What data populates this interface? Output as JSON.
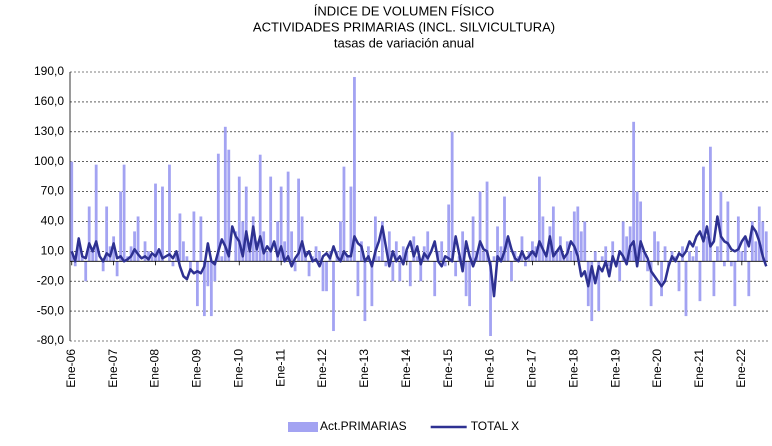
{
  "chart_data": {
    "type": "bar",
    "title": "ÍNDICE DE VOLUMEN FÍSICO",
    "subtitle": "ACTIVIDADES PRIMARIAS (INCL. SILVICULTURA)",
    "note": "tasas de variación anual",
    "categories": [
      "Ene-06",
      null,
      null,
      null,
      null,
      null,
      null,
      null,
      null,
      null,
      null,
      null,
      "Ene-07",
      null,
      null,
      null,
      null,
      null,
      null,
      null,
      null,
      null,
      null,
      null,
      "Ene-08",
      null,
      null,
      null,
      null,
      null,
      null,
      null,
      null,
      null,
      null,
      null,
      "Ene-09",
      null,
      null,
      null,
      null,
      null,
      null,
      null,
      null,
      null,
      null,
      null,
      "Ene-10",
      null,
      null,
      null,
      null,
      null,
      null,
      null,
      null,
      null,
      null,
      null,
      "Ene-11",
      null,
      null,
      null,
      null,
      null,
      null,
      null,
      null,
      null,
      null,
      null,
      "Ene-12",
      null,
      null,
      null,
      null,
      null,
      null,
      null,
      null,
      null,
      null,
      null,
      "Ene-13",
      null,
      null,
      null,
      null,
      null,
      null,
      null,
      null,
      null,
      null,
      null,
      "Ene-14",
      null,
      null,
      null,
      null,
      null,
      null,
      null,
      null,
      null,
      null,
      null,
      "Ene-15",
      null,
      null,
      null,
      null,
      null,
      null,
      null,
      null,
      null,
      null,
      null,
      "Ene-16",
      null,
      null,
      null,
      null,
      null,
      null,
      null,
      null,
      null,
      null,
      null,
      "Ene-17",
      null,
      null,
      null,
      null,
      null,
      null,
      null,
      null,
      null,
      null,
      null,
      "Ene-18",
      null,
      null,
      null,
      null,
      null,
      null,
      null,
      null,
      null,
      null,
      null,
      "Ene-19",
      null,
      null,
      null,
      null,
      null,
      null,
      null,
      null,
      null,
      null,
      null,
      "Ene-20",
      null,
      null,
      null,
      null,
      null,
      null,
      null,
      null,
      null,
      null,
      null,
      "Ene-21",
      null,
      null,
      null,
      null,
      null,
      null,
      null,
      null,
      null,
      null,
      null,
      "Ene-22",
      null,
      null,
      null,
      null,
      null,
      null,
      null
    ],
    "series": [
      {
        "name": "Act.PRIMARIAS",
        "type": "bar",
        "color": "#a3a3f2",
        "values": [
          100,
          -5,
          20,
          5,
          -20,
          55,
          10,
          97,
          0,
          -10,
          55,
          15,
          25,
          -15,
          70,
          97,
          5,
          15,
          30,
          45,
          0,
          20,
          10,
          5,
          78,
          10,
          75,
          0,
          97,
          -5,
          10,
          48,
          20,
          5,
          -10,
          50,
          -45,
          45,
          -55,
          -25,
          -55,
          -20,
          108,
          5,
          135,
          112,
          0,
          30,
          85,
          40,
          75,
          10,
          45,
          20,
          107,
          30,
          10,
          85,
          0,
          40,
          75,
          20,
          90,
          30,
          -10,
          83,
          45,
          10,
          -15,
          5,
          15,
          10,
          -30,
          -30,
          10,
          -70,
          10,
          40,
          95,
          5,
          75,
          185,
          -35,
          20,
          -60,
          15,
          -45,
          45,
          5,
          40,
          -5,
          30,
          -20,
          20,
          -20,
          15,
          10,
          -25,
          25,
          5,
          -20,
          15,
          30,
          0,
          -35,
          10,
          20,
          -5,
          57,
          130,
          -15,
          5,
          30,
          -35,
          -45,
          45,
          10,
          70,
          10,
          80,
          -75,
          5,
          35,
          15,
          65,
          20,
          -20,
          10,
          5,
          25,
          -5,
          10,
          20,
          15,
          85,
          45,
          5,
          35,
          55,
          10,
          25,
          5,
          20,
          10,
          50,
          55,
          30,
          40,
          -45,
          -60,
          10,
          -50,
          5,
          15,
          -5,
          20,
          0,
          -20,
          40,
          25,
          35,
          140,
          70,
          60,
          10,
          -10,
          -45,
          30,
          20,
          -35,
          15,
          -5,
          10,
          5,
          -30,
          15,
          -55,
          10,
          5,
          15,
          -40,
          95,
          25,
          115,
          -35,
          15,
          70,
          -5,
          60,
          -5,
          -45,
          45,
          10,
          25,
          -35,
          40,
          20,
          55,
          40,
          30
        ]
      },
      {
        "name": "TOTAL X",
        "type": "line",
        "color": "#2e3192",
        "values": [
          10,
          0,
          23,
          5,
          3,
          18,
          10,
          20,
          5,
          0,
          8,
          5,
          18,
          3,
          5,
          0,
          2,
          5,
          12,
          7,
          3,
          5,
          2,
          8,
          5,
          12,
          3,
          5,
          7,
          3,
          10,
          -5,
          -15,
          -18,
          -8,
          -12,
          -10,
          -12,
          -5,
          18,
          0,
          -3,
          10,
          22,
          15,
          5,
          35,
          25,
          20,
          5,
          30,
          10,
          35,
          12,
          25,
          8,
          15,
          10,
          20,
          5,
          15,
          0,
          5,
          -5,
          3,
          8,
          20,
          5,
          10,
          0,
          2,
          -5,
          5,
          8,
          3,
          15,
          5,
          0,
          10,
          5,
          5,
          25,
          18,
          15,
          0,
          5,
          -5,
          10,
          20,
          35,
          15,
          -5,
          10,
          0,
          5,
          -3,
          12,
          20,
          5,
          15,
          -3,
          8,
          3,
          10,
          20,
          0,
          -5,
          5,
          3,
          0,
          25,
          8,
          -10,
          20,
          5,
          -5,
          5,
          20,
          12,
          10,
          -5,
          -35,
          5,
          0,
          10,
          25,
          12,
          3,
          0,
          10,
          2,
          5,
          10,
          5,
          20,
          12,
          5,
          25,
          5,
          10,
          15,
          3,
          8,
          20,
          15,
          5,
          -15,
          -10,
          -25,
          -5,
          -22,
          -5,
          -10,
          0,
          -15,
          5,
          -5,
          10,
          5,
          -3,
          15,
          20,
          -5,
          20,
          10,
          3,
          -10,
          -15,
          -20,
          -25,
          -20,
          -5,
          5,
          0,
          8,
          5,
          10,
          20,
          15,
          25,
          30,
          20,
          35,
          15,
          20,
          45,
          25,
          20,
          18,
          12,
          10,
          12,
          20,
          25,
          15,
          35,
          30,
          20,
          5,
          -5
        ]
      }
    ],
    "ylim": [
      -80,
      190
    ],
    "yticks": [
      {
        "value": -80,
        "label": "-80,0"
      },
      {
        "value": -50,
        "label": "-50,0"
      },
      {
        "value": -20,
        "label": "-20,0"
      },
      {
        "value": 10,
        "label": "10,0"
      },
      {
        "value": 40,
        "label": "40,0"
      },
      {
        "value": 70,
        "label": "70,0"
      },
      {
        "value": 100,
        "label": "100,0"
      },
      {
        "value": 130,
        "label": "130,0"
      },
      {
        "value": 160,
        "label": "160,0"
      },
      {
        "value": 190,
        "label": "190,0"
      }
    ],
    "grid": true,
    "legend": "bottom"
  }
}
